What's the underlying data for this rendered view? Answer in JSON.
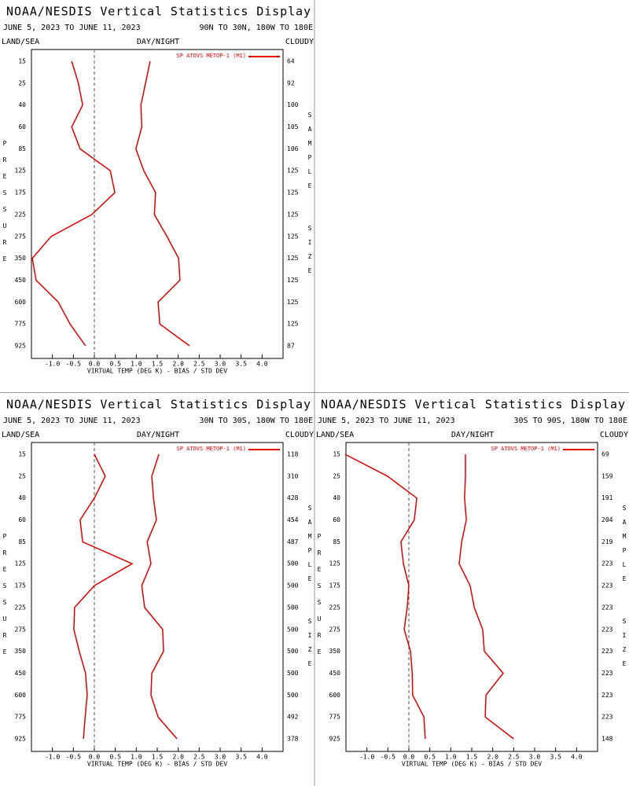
{
  "chart_data": [
    {
      "type": "line",
      "title": "NOAA/NESDIS Vertical Statistics Display",
      "date_range": "JUNE 5, 2023 TO JUNE 11, 2023",
      "region": "90N TO 30N, 180W TO 180E",
      "left_label": "LAND/SEA",
      "center_label": "DAY/NIGHT",
      "right_label": "CLOUDY",
      "legend": "SP ATOVS METOP-1 (M1)",
      "y_label": "PRESSURE",
      "y2_label": "SAMPLE SIZE",
      "x_label": "VIRTUAL TEMP (DEG K) - BIAS / STD DEV",
      "categories": [
        "15",
        "25",
        "40",
        "60",
        "85",
        "125",
        "175",
        "225",
        "275",
        "350",
        "450",
        "600",
        "775",
        "925"
      ],
      "sample_sizes": [
        "64",
        "92",
        "100",
        "105",
        "106",
        "125",
        "125",
        "125",
        "125",
        "125",
        "125",
        "125",
        "125",
        "87"
      ],
      "series": [
        {
          "color": "#e00000",
          "values": [
            -0.54,
            -0.38,
            -0.28,
            -0.54,
            -0.34,
            0.38,
            0.49,
            -0.06,
            -1.03,
            -1.48,
            -1.39,
            -0.86,
            -0.58,
            -0.21
          ]
        },
        {
          "color": "#e00000",
          "values": [
            1.33,
            1.22,
            1.11,
            1.13,
            0.99,
            1.18,
            1.46,
            1.43,
            1.73,
            2.01,
            2.04,
            1.52,
            1.56,
            2.27
          ]
        }
      ],
      "xlim": [
        -1.5,
        4.5
      ],
      "xticks": [
        {
          "value": -1,
          "label": "-1.0"
        },
        -0.5,
        {
          "value": 0,
          "label": "0.0"
        },
        0.5,
        {
          "value": 1,
          "label": "1.0"
        },
        1.5,
        {
          "value": 2,
          "label": "2.0"
        },
        2.5,
        {
          "value": 3,
          "label": "3.0"
        },
        3.5,
        {
          "value": 4,
          "label": "4.0"
        }
      ],
      "zero_line": true
    },
    {
      "type": "line",
      "title": "NOAA/NESDIS Vertical Statistics Display",
      "date_range": "JUNE 5, 2023 TO JUNE 11, 2023",
      "region": "30N TO 30S, 180W TO 180E",
      "left_label": "LAND/SEA",
      "center_label": "DAY/NIGHT",
      "right_label": "CLOUDY",
      "legend": "SP ATOVS METOP-1 (M1)",
      "y_label": "PRESSURE",
      "y2_label": "SAMPLE SIZE",
      "x_label": "VIRTUAL TEMP (DEG K) - BIAS / STD DEV",
      "categories": [
        "15",
        "25",
        "40",
        "60",
        "85",
        "125",
        "175",
        "225",
        "275",
        "350",
        "450",
        "600",
        "775",
        "925"
      ],
      "sample_sizes": [
        "118",
        "310",
        "428",
        "454",
        "487",
        "500",
        "500",
        "500",
        "500",
        "500",
        "500",
        "500",
        "492",
        "378"
      ],
      "series": [
        {
          "color": "#e00000",
          "values": [
            0.0,
            0.26,
            0.0,
            -0.34,
            -0.28,
            0.9,
            0.0,
            -0.47,
            -0.49,
            -0.36,
            -0.21,
            -0.17,
            -0.22,
            -0.26
          ]
        },
        {
          "color": "#e00000",
          "values": [
            1.54,
            1.37,
            1.41,
            1.48,
            1.26,
            1.35,
            1.13,
            1.2,
            1.63,
            1.65,
            1.37,
            1.35,
            1.52,
            1.97
          ]
        }
      ],
      "xlim": [
        -1.5,
        4.5
      ],
      "xticks": [
        {
          "value": -1,
          "label": "-1.0"
        },
        -0.5,
        {
          "value": 0,
          "label": "0.0"
        },
        0.5,
        {
          "value": 1,
          "label": "1.0"
        },
        1.5,
        {
          "value": 2,
          "label": "2.0"
        },
        2.5,
        {
          "value": 3,
          "label": "3.0"
        },
        3.5,
        {
          "value": 4,
          "label": "4.0"
        }
      ],
      "zero_line": true
    },
    {
      "type": "line",
      "title": "NOAA/NESDIS Vertical Statistics Display",
      "date_range": "JUNE 5, 2023 TO JUNE 11, 2023",
      "region": "30S TO 90S, 180W TO 180E",
      "left_label": "LAND/SEA",
      "center_label": "DAY/NIGHT",
      "right_label": "CLOUDY",
      "legend": "SP ATOVS METOP-1 (M1)",
      "y_label": "PRESSURE",
      "y2_label": "SAMPLE SIZE",
      "x_label": "VIRTUAL TEMP (DEG K) - BIAS / STD DEV",
      "categories": [
        "15",
        "25",
        "40",
        "60",
        "85",
        "125",
        "175",
        "225",
        "275",
        "350",
        "450",
        "600",
        "775",
        "925"
      ],
      "sample_sizes": [
        "69",
        "159",
        "191",
        "204",
        "219",
        "223",
        "223",
        "223",
        "223",
        "223",
        "223",
        "223",
        "223",
        "148"
      ],
      "series": [
        {
          "color": "#e00000",
          "values": [
            -1.52,
            -0.51,
            0.19,
            0.13,
            -0.19,
            -0.13,
            0.0,
            -0.04,
            -0.11,
            0.04,
            0.08,
            0.09,
            0.36,
            0.39
          ]
        },
        {
          "color": "#e00000",
          "values": [
            1.35,
            1.35,
            1.33,
            1.37,
            1.26,
            1.2,
            1.46,
            1.56,
            1.76,
            1.8,
            2.25,
            1.84,
            1.82,
            2.5
          ]
        }
      ],
      "xlim": [
        -1.5,
        4.5
      ],
      "xticks": [
        {
          "value": -1,
          "label": "-1.0"
        },
        -0.5,
        {
          "value": 0,
          "label": "0.0"
        },
        0.5,
        {
          "value": 1,
          "label": "1.0"
        },
        1.5,
        {
          "value": 2,
          "label": "2.0"
        },
        2.5,
        {
          "value": 3,
          "label": "3.0"
        },
        3.5,
        {
          "value": 4,
          "label": "4.0"
        }
      ],
      "zero_line": true
    }
  ]
}
